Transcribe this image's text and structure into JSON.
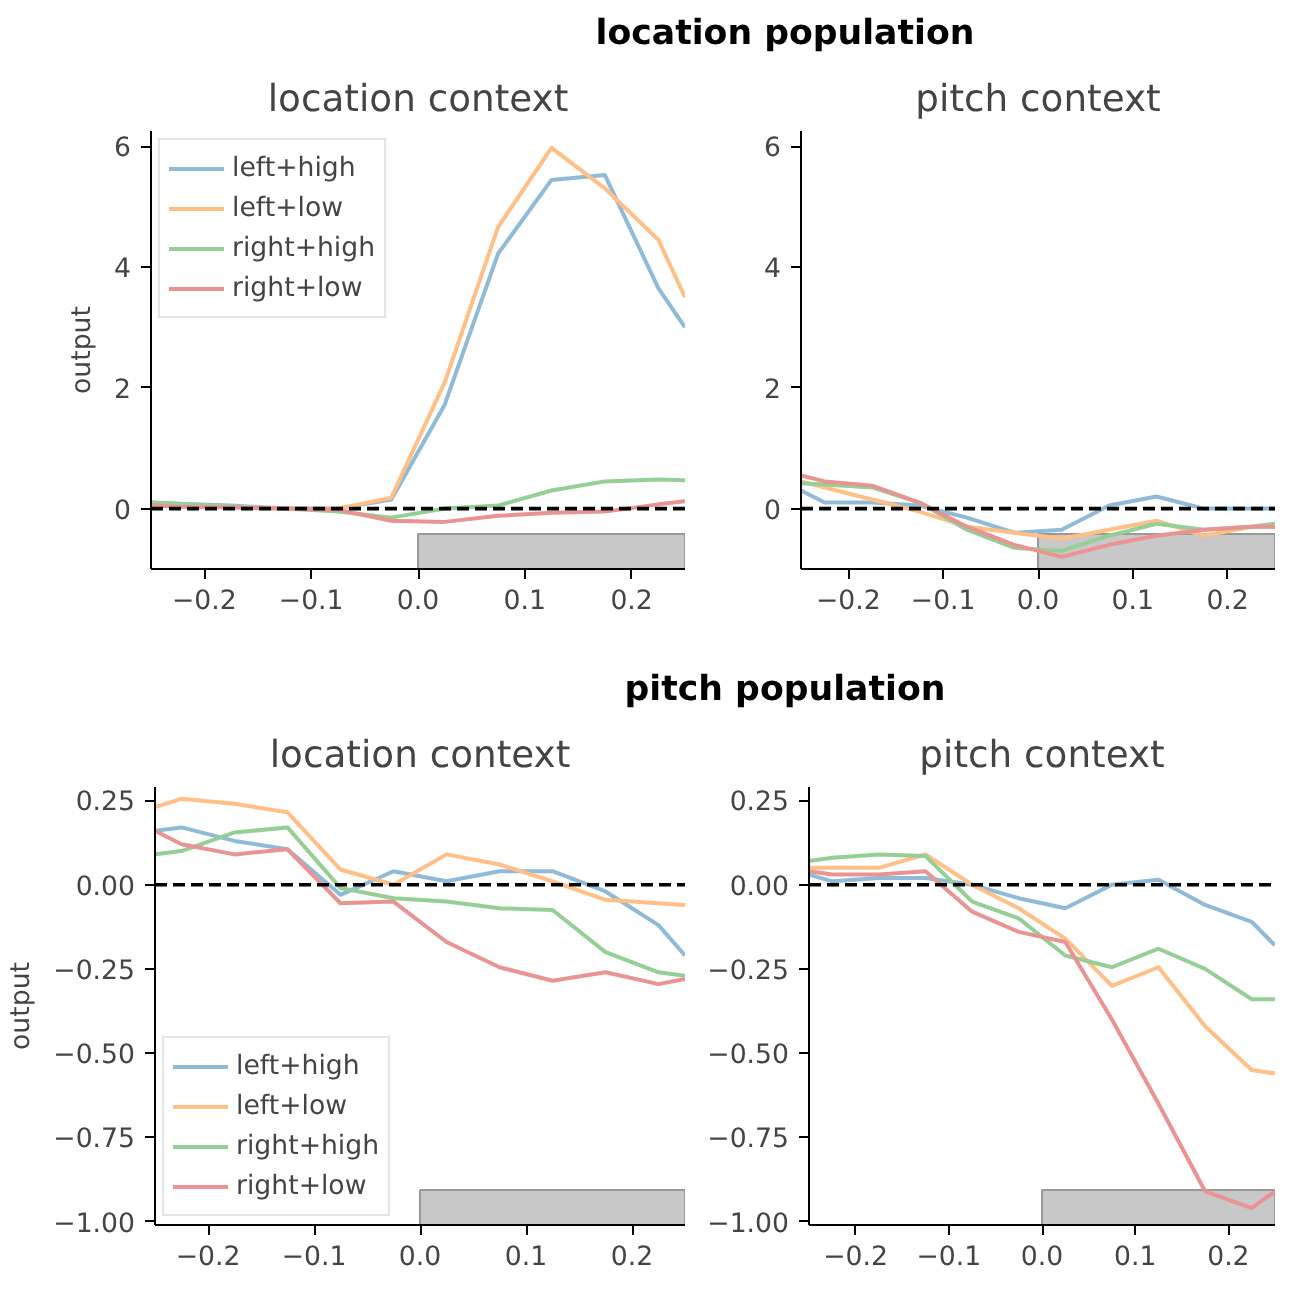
{
  "chart_data": [
    {
      "type": "line",
      "title": "location context",
      "ylabel": "output",
      "annotations": [
        "location population"
      ],
      "x": [
        -0.25,
        -0.225,
        -0.175,
        -0.125,
        -0.075,
        -0.025,
        0.025,
        0.075,
        0.125,
        0.175,
        0.225,
        0.25
      ],
      "series": [
        {
          "name": "left+high",
          "color": "#8fbbd9",
          "values": [
            0.1,
            0.08,
            0.05,
            0.0,
            0.0,
            0.15,
            1.72,
            4.22,
            5.44,
            5.52,
            3.65,
            3.0
          ]
        },
        {
          "name": "left+low",
          "color": "#ffbf86",
          "values": [
            0.05,
            0.05,
            0.03,
            0.0,
            0.0,
            0.18,
            2.09,
            4.66,
            5.97,
            5.3,
            4.45,
            3.5
          ]
        },
        {
          "name": "right+high",
          "color": "#95cf95",
          "values": [
            0.1,
            0.08,
            0.03,
            0.0,
            -0.05,
            -0.15,
            0.0,
            0.05,
            0.3,
            0.45,
            0.48,
            0.47
          ]
        },
        {
          "name": "right+low",
          "color": "#ea9393",
          "values": [
            0.05,
            0.03,
            0.02,
            0.0,
            -0.02,
            -0.2,
            -0.22,
            -0.12,
            -0.07,
            -0.05,
            0.07,
            0.12
          ]
        }
      ],
      "xlim": [
        -0.25,
        0.25
      ],
      "ylim": [
        -1.0,
        6.25
      ],
      "xticks": [
        {
          "value": -0.2,
          "label": "−0.2"
        },
        {
          "value": -0.1,
          "label": "−0.1"
        },
        {
          "value": 0.0,
          "label": "0.0"
        },
        {
          "value": 0.1,
          "label": "0.1"
        },
        {
          "value": 0.2,
          "label": "0.2"
        }
      ],
      "yticks": [
        0,
        2,
        4,
        6
      ],
      "ref_lines": [
        {
          "axis": "y",
          "value": 0,
          "color": "#000000",
          "line_style": "dashed"
        }
      ],
      "bands": [
        {
          "axis": "x",
          "from": 0.0,
          "to": 0.25,
          "color": "#c8c8c8"
        }
      ],
      "grid": false,
      "legend": "top left"
    },
    {
      "type": "line",
      "title": "pitch context",
      "x": [
        -0.25,
        -0.225,
        -0.175,
        -0.125,
        -0.075,
        -0.025,
        0.025,
        0.075,
        0.125,
        0.175,
        0.225,
        0.25
      ],
      "series": [
        {
          "color": "#8fbbd9",
          "values": [
            0.3,
            0.1,
            0.1,
            0.05,
            -0.15,
            -0.4,
            -0.35,
            0.05,
            0.2,
            0.0,
            0.0,
            0.0
          ]
        },
        {
          "color": "#ffbf86",
          "values": [
            0.45,
            0.35,
            0.15,
            -0.05,
            -0.3,
            -0.4,
            -0.5,
            -0.35,
            -0.2,
            -0.45,
            -0.3,
            -0.3
          ]
        },
        {
          "color": "#95cf95",
          "values": [
            0.42,
            0.4,
            0.35,
            0.1,
            -0.35,
            -0.65,
            -0.7,
            -0.45,
            -0.25,
            -0.35,
            -0.3,
            -0.25
          ]
        },
        {
          "color": "#ea9393",
          "values": [
            0.55,
            0.45,
            0.38,
            0.1,
            -0.3,
            -0.6,
            -0.8,
            -0.6,
            -0.45,
            -0.35,
            -0.3,
            -0.3
          ]
        }
      ],
      "xlim": [
        -0.25,
        0.25
      ],
      "ylim": [
        -1.0,
        6.25
      ],
      "xticks": [
        {
          "value": -0.2,
          "label": "−0.2"
        },
        {
          "value": -0.1,
          "label": "−0.1"
        },
        {
          "value": 0.0,
          "label": "0.0"
        },
        {
          "value": 0.1,
          "label": "0.1"
        },
        {
          "value": 0.2,
          "label": "0.2"
        }
      ],
      "yticks": [
        0,
        2,
        4,
        6
      ],
      "ref_lines": [
        {
          "axis": "y",
          "value": 0,
          "color": "#000000",
          "line_style": "dashed"
        }
      ],
      "bands": [
        {
          "axis": "x",
          "from": 0.0,
          "to": 0.25,
          "color": "#c8c8c8"
        }
      ],
      "grid": false
    },
    {
      "type": "line",
      "title": "location context",
      "ylabel": "output",
      "annotations": [
        "pitch population"
      ],
      "x": [
        -0.25,
        -0.225,
        -0.175,
        -0.125,
        -0.075,
        -0.025,
        0.025,
        0.075,
        0.125,
        0.175,
        0.225,
        0.25
      ],
      "series": [
        {
          "name": "left+high",
          "color": "#8fbbd9",
          "values": [
            0.16,
            0.17,
            0.13,
            0.105,
            -0.03,
            0.04,
            0.01,
            0.04,
            0.04,
            -0.02,
            -0.12,
            -0.21
          ]
        },
        {
          "name": "left+low",
          "color": "#ffbf86",
          "values": [
            0.23,
            0.255,
            0.24,
            0.215,
            0.045,
            0.0,
            0.09,
            0.06,
            0.01,
            -0.045,
            -0.055,
            -0.06
          ]
        },
        {
          "name": "right+high",
          "color": "#95cf95",
          "values": [
            0.09,
            0.1,
            0.155,
            0.17,
            -0.01,
            -0.04,
            -0.05,
            -0.07,
            -0.075,
            -0.2,
            -0.26,
            -0.27
          ]
        },
        {
          "name": "right+low",
          "color": "#ea9393",
          "values": [
            0.16,
            0.12,
            0.09,
            0.105,
            -0.055,
            -0.05,
            -0.17,
            -0.245,
            -0.285,
            -0.26,
            -0.295,
            -0.28
          ]
        }
      ],
      "xlim": [
        -0.25,
        0.25
      ],
      "ylim": [
        -1.01,
        0.29
      ],
      "xticks": [
        {
          "value": -0.2,
          "label": "−0.2"
        },
        {
          "value": -0.1,
          "label": "−0.1"
        },
        {
          "value": 0.0,
          "label": "0.0"
        },
        {
          "value": 0.1,
          "label": "0.1"
        },
        {
          "value": 0.2,
          "label": "0.2"
        }
      ],
      "yticks": [
        {
          "value": 0.25,
          "label": "0.25"
        },
        {
          "value": 0.0,
          "label": "0.00"
        },
        {
          "value": -0.25,
          "label": "−0.25"
        },
        {
          "value": -0.5,
          "label": "−0.50"
        },
        {
          "value": -0.75,
          "label": "−0.75"
        },
        {
          "value": -1.0,
          "label": "−1.00"
        }
      ],
      "ref_lines": [
        {
          "axis": "y",
          "value": 0,
          "color": "#000000",
          "line_style": "dashed"
        }
      ],
      "bands": [
        {
          "axis": "x",
          "from": 0.0,
          "to": 0.25,
          "color": "#c8c8c8"
        }
      ],
      "grid": false,
      "legend": "bottom left"
    },
    {
      "type": "line",
      "title": "pitch context",
      "x": [
        -0.25,
        -0.225,
        -0.175,
        -0.125,
        -0.075,
        -0.025,
        0.025,
        0.075,
        0.125,
        0.175,
        0.225,
        0.25
      ],
      "series": [
        {
          "color": "#8fbbd9",
          "values": [
            0.03,
            0.01,
            0.02,
            0.02,
            0.0,
            -0.04,
            -0.07,
            0.0,
            0.015,
            -0.06,
            -0.11,
            -0.18
          ]
        },
        {
          "color": "#ffbf86",
          "values": [
            0.05,
            0.05,
            0.05,
            0.09,
            0.0,
            -0.07,
            -0.16,
            -0.3,
            -0.245,
            -0.42,
            -0.55,
            -0.56
          ]
        },
        {
          "color": "#95cf95",
          "values": [
            0.07,
            0.08,
            0.09,
            0.085,
            -0.05,
            -0.1,
            -0.21,
            -0.245,
            -0.19,
            -0.25,
            -0.34,
            -0.34
          ]
        },
        {
          "color": "#ea9393",
          "values": [
            0.04,
            0.03,
            0.03,
            0.04,
            -0.08,
            -0.14,
            -0.17,
            -0.4,
            -0.65,
            -0.91,
            -0.96,
            -0.91
          ]
        }
      ],
      "xlim": [
        -0.25,
        0.25
      ],
      "ylim": [
        -1.01,
        0.29
      ],
      "xticks": [
        {
          "value": -0.2,
          "label": "−0.2"
        },
        {
          "value": -0.1,
          "label": "−0.1"
        },
        {
          "value": 0.0,
          "label": "0.0"
        },
        {
          "value": 0.1,
          "label": "0.1"
        },
        {
          "value": 0.2,
          "label": "0.2"
        }
      ],
      "yticks": [
        {
          "value": 0.25,
          "label": "0.25"
        },
        {
          "value": 0.0,
          "label": "0.00"
        },
        {
          "value": -0.25,
          "label": "−0.25"
        },
        {
          "value": -0.5,
          "label": "−0.50"
        },
        {
          "value": -0.75,
          "label": "−0.75"
        },
        {
          "value": -1.0,
          "label": "−1.00"
        }
      ],
      "ref_lines": [
        {
          "axis": "y",
          "value": 0,
          "color": "#000000",
          "line_style": "dashed"
        }
      ],
      "bands": [
        {
          "axis": "x",
          "from": 0.0,
          "to": 0.25,
          "color": "#c8c8c8"
        }
      ],
      "grid": false
    }
  ]
}
